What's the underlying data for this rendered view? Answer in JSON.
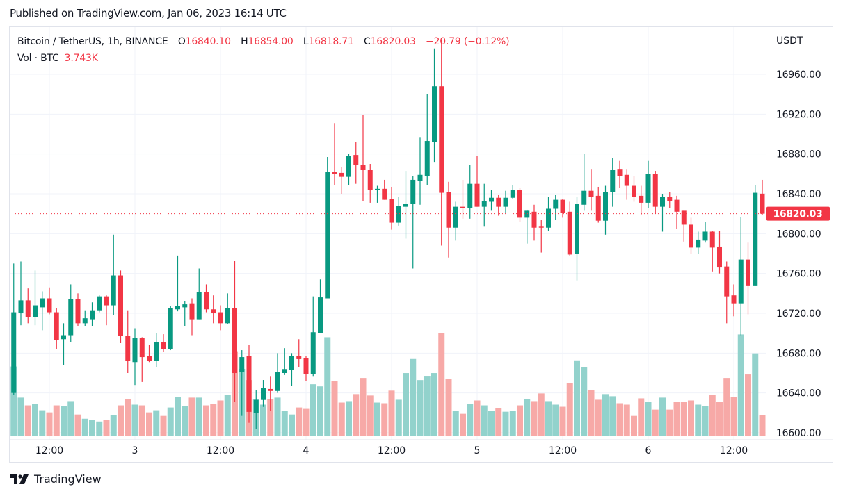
{
  "published": "Published on TradingView.com, Jan 06, 2023 16:14 UTC",
  "legend": {
    "symbol": "Bitcoin / TetherUS, 1h, BINANCE",
    "open_label": "O",
    "open": "16840.10",
    "high_label": "H",
    "high": "16854.00",
    "low_label": "L",
    "low": "16818.71",
    "close_label": "C",
    "close": "16820.03",
    "change": "−20.79 (−0.12%)",
    "vol_label": "Vol · BTC",
    "vol": "3.743K"
  },
  "logo_text": "TradingView",
  "colors": {
    "up": "#089981",
    "down": "#f23645",
    "vol_up": "#92d2cc",
    "vol_down": "#f7a9a7",
    "grid": "#f0f3fa"
  },
  "chart_data": {
    "type": "candlestick",
    "interval": "1h",
    "currency": "USDT",
    "ylim": [
      16590,
      16998
    ],
    "y_ticks": [
      "16600.00",
      "16640.00",
      "16680.00",
      "16720.00",
      "16760.00",
      "16800.00",
      "16840.00",
      "16880.00",
      "16920.00",
      "16960.00"
    ],
    "x_ticks": [
      {
        "label": "12:00",
        "time": "2023-01-02T12:00"
      },
      {
        "label": "3",
        "time": "2023-01-03T00:00"
      },
      {
        "label": "12:00",
        "time": "2023-01-03T12:00"
      },
      {
        "label": "4",
        "time": "2023-01-04T00:00"
      },
      {
        "label": "12:00",
        "time": "2023-01-04T12:00"
      },
      {
        "label": "5",
        "time": "2023-01-05T00:00"
      },
      {
        "label": "12:00",
        "time": "2023-01-05T12:00"
      },
      {
        "label": "6",
        "time": "2023-01-06T00:00"
      },
      {
        "label": "12:00",
        "time": "2023-01-06T12:00"
      }
    ],
    "last_price": "16820.03",
    "grid": true,
    "volume_unit": "K BTC",
    "candle_fields": [
      "time",
      "open",
      "high",
      "low",
      "close",
      "volume"
    ],
    "candles": [
      [
        "2023-01-02T07:00",
        16640,
        16770,
        16638,
        16721,
        12.49
      ],
      [
        "2023-01-02T08:00",
        16720,
        16772,
        16708,
        16733,
        6.9
      ],
      [
        "2023-01-02T09:00",
        16733,
        16745,
        16710,
        16716,
        5.51
      ],
      [
        "2023-01-02T10:00",
        16716,
        16763,
        16708,
        16728,
        5.76
      ],
      [
        "2023-01-02T11:00",
        16726,
        16742,
        16703,
        16735,
        4.63
      ],
      [
        "2023-01-02T12:00",
        16735,
        16746,
        16719,
        16721,
        4.25
      ],
      [
        "2023-01-02T13:00",
        16721,
        16725,
        16684,
        16693,
        5.51
      ],
      [
        "2023-01-02T14:00",
        16694,
        16710,
        16668,
        16698,
        5.38
      ],
      [
        "2023-01-02T15:00",
        16698,
        16749,
        16691,
        16734,
        6.27
      ],
      [
        "2023-01-02T16:00",
        16734,
        16740,
        16707,
        16710,
        3.87
      ],
      [
        "2023-01-02T17:00",
        16710,
        16723,
        16707,
        16715,
        3.11
      ],
      [
        "2023-01-02T18:00",
        16714,
        16731,
        16707,
        16723,
        2.86
      ],
      [
        "2023-01-02T19:00",
        16723,
        16738,
        16721,
        16737,
        2.61
      ],
      [
        "2023-01-02T20:00",
        16737,
        16738,
        16708,
        16728,
        2.86
      ],
      [
        "2023-01-02T21:00",
        16728,
        16799,
        16718,
        16758,
        3.74
      ],
      [
        "2023-01-02T22:00",
        16758,
        16763,
        16690,
        16697,
        5.51
      ],
      [
        "2023-01-02T23:00",
        16697,
        16723,
        16660,
        16672,
        6.65
      ],
      [
        "2023-01-03T00:00",
        16671,
        16705,
        16648,
        16695,
        5.64
      ],
      [
        "2023-01-03T01:00",
        16695,
        16696,
        16651,
        16676,
        5.51
      ],
      [
        "2023-01-03T02:00",
        16677,
        16688,
        16671,
        16672,
        4.25
      ],
      [
        "2023-01-03T03:00",
        16672,
        16700,
        16666,
        16691,
        4.63
      ],
      [
        "2023-01-03T04:00",
        16691,
        16699,
        16681,
        16684,
        3.62
      ],
      [
        "2023-01-03T05:00",
        16684,
        16727,
        16683,
        16725,
        5.13
      ],
      [
        "2023-01-03T06:00",
        16724,
        16778,
        16722,
        16727,
        7.02
      ],
      [
        "2023-01-03T07:00",
        16726,
        16732,
        16707,
        16729,
        5.38
      ],
      [
        "2023-01-03T08:00",
        16730,
        16735,
        16698,
        16714,
        6.9
      ],
      [
        "2023-01-03T09:00",
        16714,
        16765,
        16714,
        16741,
        6.9
      ],
      [
        "2023-01-03T10:00",
        16741,
        16749,
        16721,
        16724,
        5.51
      ],
      [
        "2023-01-03T11:00",
        16724,
        16738,
        16710,
        16720,
        5.76
      ],
      [
        "2023-01-03T12:00",
        16721,
        16728,
        16703,
        16710,
        6.39
      ],
      [
        "2023-01-03T13:00",
        16710,
        16740,
        16709,
        16725,
        7.4
      ],
      [
        "2023-01-03T14:00",
        16725,
        16773,
        16631,
        16660,
        15.23
      ],
      [
        "2023-01-03T15:00",
        16661,
        16683,
        16617,
        16676,
        12.07
      ],
      [
        "2023-01-03T16:00",
        16677,
        16688,
        16610,
        16621,
        10.05
      ],
      [
        "2023-01-03T17:00",
        16620,
        16643,
        16604,
        16633,
        6.65
      ],
      [
        "2023-01-03T18:00",
        16633,
        16653,
        16626,
        16645,
        5.64
      ],
      [
        "2023-01-03T19:00",
        16644,
        16657,
        16622,
        16642,
        6.65
      ],
      [
        "2023-01-03T20:00",
        16642,
        16680,
        16640,
        16661,
        6.9
      ],
      [
        "2023-01-03T21:00",
        16660,
        16685,
        16658,
        16664,
        4.5
      ],
      [
        "2023-01-03T22:00",
        16663,
        16680,
        16647,
        16677,
        3.87
      ],
      [
        "2023-01-03T23:00",
        16677,
        16694,
        16666,
        16674,
        5.13
      ],
      [
        "2023-01-04T00:00",
        16675,
        16677,
        16652,
        16659,
        4.88
      ],
      [
        "2023-01-04T01:00",
        16659,
        16737,
        16657,
        16701,
        9.3
      ],
      [
        "2023-01-04T02:00",
        16700,
        16754,
        16700,
        16736,
        8.92
      ],
      [
        "2023-01-04T03:00",
        16735,
        16877,
        16735,
        16862,
        17.75
      ],
      [
        "2023-01-04T04:00",
        16862,
        16911,
        16849,
        16860,
        9.93
      ],
      [
        "2023-01-04T05:00",
        16861,
        16867,
        16840,
        16857,
        6.01
      ],
      [
        "2023-01-04T06:00",
        16857,
        16880,
        16849,
        16878,
        6.27
      ],
      [
        "2023-01-04T07:00",
        16879,
        16892,
        16850,
        16869,
        7.53
      ],
      [
        "2023-01-04T08:00",
        16869,
        16919,
        16833,
        16864,
        10.43
      ],
      [
        "2023-01-04T09:00",
        16864,
        16870,
        16831,
        16844,
        7.28
      ],
      [
        "2023-01-04T10:00",
        16845,
        16848,
        16831,
        16845,
        6.01
      ],
      [
        "2023-01-04T11:00",
        16845,
        16854,
        16834,
        16834,
        5.89
      ],
      [
        "2023-01-04T12:00",
        16835,
        16847,
        16804,
        16811,
        8.16
      ],
      [
        "2023-01-04T13:00",
        16811,
        16837,
        16808,
        16828,
        6.52
      ],
      [
        "2023-01-04T14:00",
        16827,
        16863,
        16795,
        16830,
        11.31
      ],
      [
        "2023-01-04T15:00",
        16830,
        16858,
        16765,
        16854,
        13.84
      ],
      [
        "2023-01-04T16:00",
        16853,
        16897,
        16829,
        16859,
        10.05
      ],
      [
        "2023-01-04T17:00",
        16858,
        16940,
        16849,
        16893,
        10.81
      ],
      [
        "2023-01-04T18:00",
        16892,
        16986,
        16872,
        16948,
        11.31
      ],
      [
        "2023-01-04T19:00",
        16948,
        16995,
        16788,
        16841,
        18.51
      ],
      [
        "2023-01-04T20:00",
        16842,
        16852,
        16776,
        16806,
        10.3
      ],
      [
        "2023-01-04T21:00",
        16806,
        16832,
        16793,
        16827,
        4.5
      ],
      [
        "2023-01-04T22:00",
        16827,
        16854,
        16815,
        16826,
        4.0
      ],
      [
        "2023-01-04T23:00",
        16826,
        16869,
        16815,
        16850,
        5.76
      ],
      [
        "2023-01-05T00:00",
        16850,
        16878,
        16827,
        16827,
        6.39
      ],
      [
        "2023-01-05T01:00",
        16827,
        16850,
        16807,
        16833,
        5.51
      ],
      [
        "2023-01-05T02:00",
        16832,
        16844,
        16823,
        16836,
        4.5
      ],
      [
        "2023-01-05T03:00",
        16836,
        16839,
        16818,
        16827,
        5.01
      ],
      [
        "2023-01-05T04:00",
        16827,
        16843,
        16821,
        16836,
        4.37
      ],
      [
        "2023-01-05T05:00",
        16836,
        16849,
        16835,
        16844,
        4.5
      ],
      [
        "2023-01-05T06:00",
        16844,
        16846,
        16812,
        16816,
        5.51
      ],
      [
        "2023-01-05T07:00",
        16816,
        16824,
        16790,
        16823,
        6.65
      ],
      [
        "2023-01-05T08:00",
        16822,
        16829,
        16793,
        16806,
        6.27
      ],
      [
        "2023-01-05T09:00",
        16807,
        16814,
        16781,
        16806,
        7.65
      ],
      [
        "2023-01-05T10:00",
        16806,
        16837,
        16803,
        16825,
        6.27
      ],
      [
        "2023-01-05T11:00",
        16825,
        16839,
        16814,
        16834,
        5.64
      ],
      [
        "2023-01-05T12:00",
        16834,
        16835,
        16816,
        16821,
        5.26
      ],
      [
        "2023-01-05T13:00",
        16822,
        16832,
        16778,
        16779,
        9.55
      ],
      [
        "2023-01-05T14:00",
        16780,
        16837,
        16753,
        16830,
        13.59
      ],
      [
        "2023-01-05T15:00",
        16829,
        16880,
        16823,
        16843,
        12.32
      ],
      [
        "2023-01-05T16:00",
        16843,
        16865,
        16823,
        16837,
        8.29
      ],
      [
        "2023-01-05T17:00",
        16838,
        16847,
        16811,
        16813,
        6.52
      ],
      [
        "2023-01-05T18:00",
        16813,
        16848,
        16799,
        16842,
        7.53
      ],
      [
        "2023-01-05T19:00",
        16842,
        16876,
        16827,
        16864,
        7.15
      ],
      [
        "2023-01-05T20:00",
        16865,
        16873,
        16846,
        16858,
        5.89
      ],
      [
        "2023-01-05T21:00",
        16859,
        16865,
        16834,
        16848,
        5.64
      ],
      [
        "2023-01-05T22:00",
        16848,
        16858,
        16832,
        16837,
        3.62
      ],
      [
        "2023-01-05T23:00",
        16838,
        16848,
        16819,
        16831,
        6.77
      ],
      [
        "2023-01-06T00:00",
        16831,
        16873,
        16826,
        16860,
        6.14
      ],
      [
        "2023-01-06T01:00",
        16860,
        16863,
        16820,
        16827,
        4.75
      ],
      [
        "2023-01-06T02:00",
        16827,
        16840,
        16802,
        16837,
        6.9
      ],
      [
        "2023-01-06T03:00",
        16837,
        16842,
        16826,
        16833,
        4.75
      ],
      [
        "2023-01-06T04:00",
        16834,
        16838,
        16805,
        16822,
        6.14
      ],
      [
        "2023-01-06T05:00",
        16823,
        16823,
        16792,
        16809,
        6.14
      ],
      [
        "2023-01-06T06:00",
        16809,
        16816,
        16780,
        16786,
        6.39
      ],
      [
        "2023-01-06T07:00",
        16786,
        16802,
        16780,
        16794,
        5.64
      ],
      [
        "2023-01-06T08:00",
        16793,
        16812,
        16791,
        16802,
        5.38
      ],
      [
        "2023-01-06T09:00",
        16802,
        16803,
        16762,
        16786,
        7.4
      ],
      [
        "2023-01-06T10:00",
        16787,
        16803,
        16760,
        16766,
        6.14
      ],
      [
        "2023-01-06T11:00",
        16767,
        16772,
        16710,
        16737,
        10.43
      ],
      [
        "2023-01-06T12:00",
        16738,
        16749,
        16717,
        16730,
        7.02
      ],
      [
        "2023-01-06T13:00",
        16730,
        16817,
        16698,
        16774,
        18.25
      ],
      [
        "2023-01-06T14:00",
        16774,
        16791,
        16719,
        16748,
        11.06
      ],
      [
        "2023-01-06T15:00",
        16748,
        16849,
        16748,
        16841,
        14.85
      ],
      [
        "2023-01-06T16:00",
        16840.1,
        16854.0,
        16818.71,
        16820.03,
        3.743
      ]
    ]
  }
}
